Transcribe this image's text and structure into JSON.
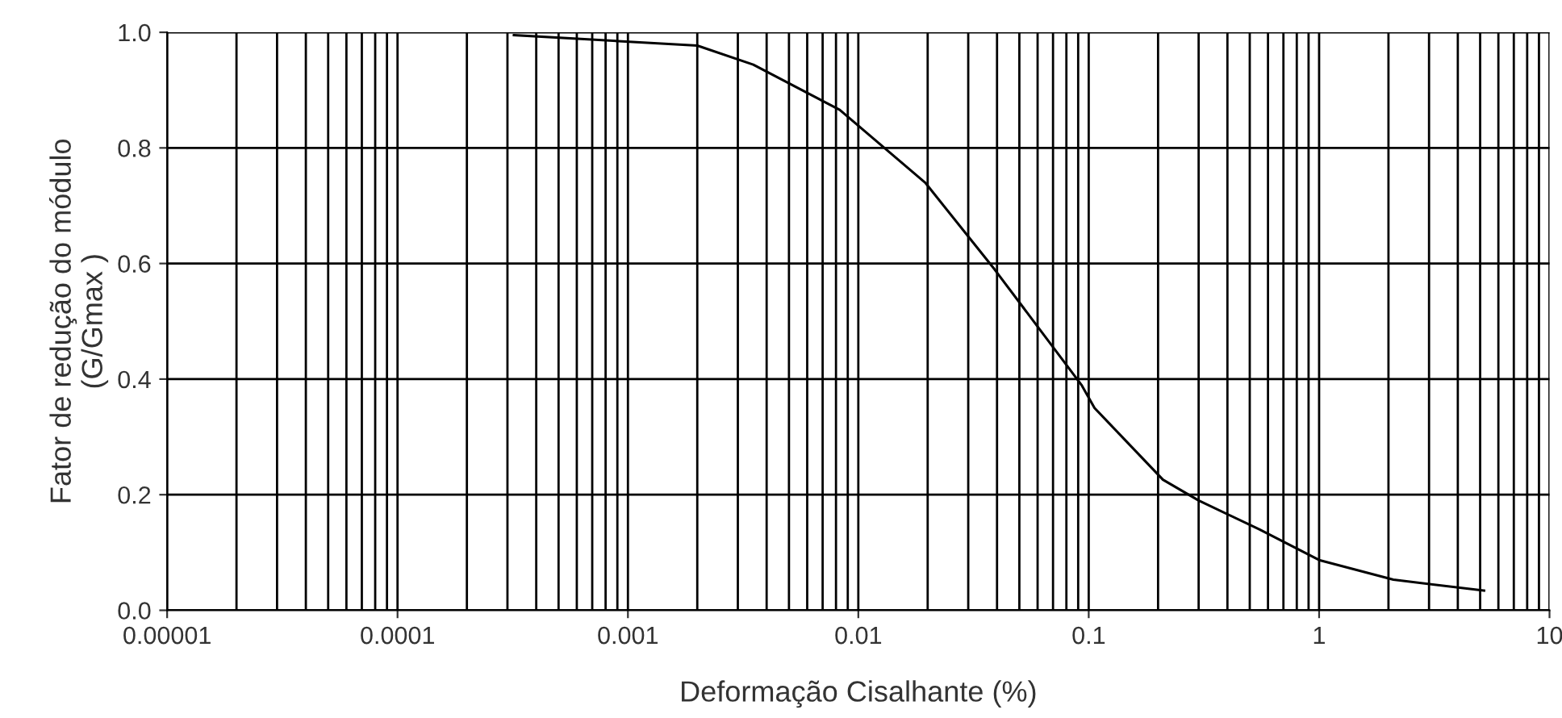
{
  "chart_data": {
    "type": "line",
    "xlabel": "Deformação Cisalhante (%)",
    "ylabel": "Fator de redução do módulo\n(G/Gmax )",
    "x": [
      0.00032,
      0.002,
      0.0035,
      0.0083,
      0.0195,
      0.039,
      0.093,
      0.106,
      0.21,
      0.3,
      0.55,
      1.0,
      2.1,
      5.2
    ],
    "series": [
      {
        "color": "#000000",
        "values": [
          0.995,
          0.977,
          0.944,
          0.866,
          0.74,
          0.59,
          0.39,
          0.35,
          0.226,
          0.19,
          0.14,
          0.087,
          0.053,
          0.034
        ]
      }
    ],
    "log": "x",
    "xlim": [
      1e-05,
      10
    ],
    "ylim": [
      0,
      1
    ],
    "xticks": [
      {
        "value": 1e-05,
        "label": "0.00001"
      },
      {
        "value": 0.0001,
        "label": "0.0001"
      },
      {
        "value": 0.001,
        "label": "0.001"
      },
      {
        "value": 0.01,
        "label": "0.01"
      },
      {
        "value": 0.1,
        "label": "0.1"
      },
      1,
      10
    ],
    "yticks": [
      {
        "value": 0,
        "label": "0.0"
      },
      0.2,
      0.4,
      0.6,
      0.8,
      {
        "value": 1,
        "label": "1.0"
      }
    ],
    "grid": true,
    "marker": "none",
    "line_style": "solid"
  }
}
